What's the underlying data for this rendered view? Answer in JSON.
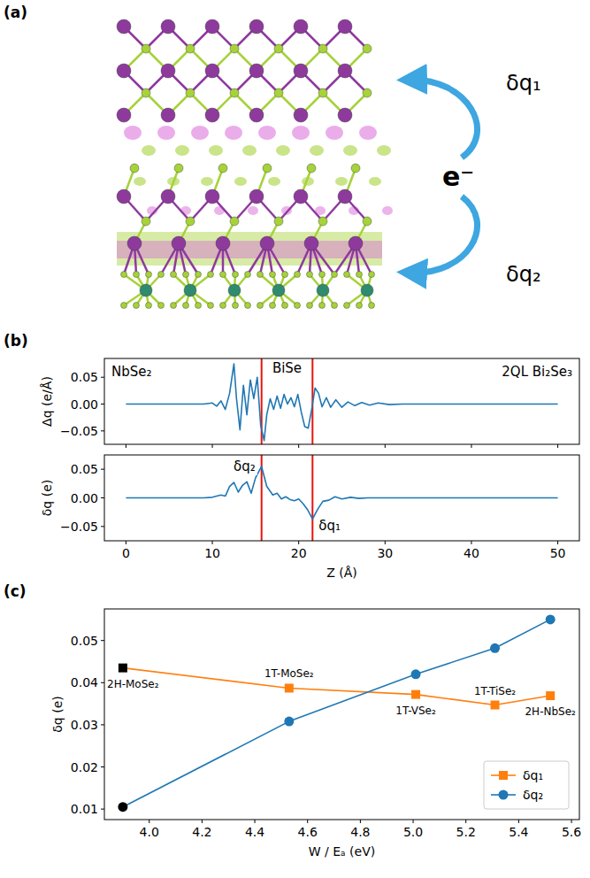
{
  "diagram": {
    "panel_label": "(a)",
    "labels": [
      "δq₁",
      "e⁻",
      "δq₂"
    ]
  },
  "chart_data": [
    {
      "type": "line",
      "panel_label": "(b)",
      "ylabel": "Δq (e/Å)",
      "annotations": [
        "NbSe₂",
        "BiSe",
        "2QL Bi₂Se₃"
      ],
      "x": [
        0,
        5,
        9,
        10,
        10.5,
        11,
        11.5,
        12,
        12.5,
        12.8,
        13.2,
        13.6,
        14,
        14.4,
        14.8,
        15.2,
        15.6,
        16,
        16.3,
        16.7,
        17.1,
        17.5,
        17.9,
        18.3,
        18.7,
        19.1,
        19.5,
        19.9,
        20.3,
        20.7,
        21.1,
        21.5,
        21.9,
        22.3,
        22.7,
        23.2,
        23.7,
        24.3,
        25,
        25.7,
        26.5,
        27.3,
        28.2,
        29.2,
        30.5,
        32,
        35,
        40,
        50
      ],
      "values": [
        0,
        0,
        0,
        0.002,
        -0.004,
        0.006,
        -0.01,
        0.02,
        0.075,
        0.01,
        -0.048,
        0.035,
        -0.02,
        0.045,
        0.01,
        0.05,
        -0.04,
        -0.068,
        -0.02,
        0.01,
        -0.01,
        0.015,
        -0.008,
        0.018,
        0.0,
        0.012,
        -0.005,
        0.018,
        -0.015,
        -0.042,
        -0.045,
        -0.01,
        0.03,
        0.02,
        -0.005,
        0.012,
        -0.006,
        0.008,
        -0.006,
        0.004,
        -0.003,
        0.003,
        -0.002,
        0.002,
        -0.001,
        0,
        0,
        0,
        0
      ],
      "color": "#1f77b4",
      "vlines": {
        "x": [
          15.7,
          21.6
        ],
        "color": "#e8140c"
      },
      "xlim": [
        -2.5,
        52.5
      ],
      "xticks": [
        0,
        10,
        20,
        30,
        40,
        50
      ],
      "ylim": [
        -0.075,
        0.085
      ],
      "yticks": [
        {
          "value": -0.05,
          "label": "−0.05"
        },
        {
          "value": 0,
          "label": "0.00"
        },
        {
          "value": 0.05,
          "label": "0.05"
        }
      ],
      "tick_labels": "y"
    },
    {
      "type": "line",
      "ylabel": "δq (e)",
      "xlabel": "Z (Å)",
      "annotations": [
        "δq₂",
        "δq₁"
      ],
      "x": [
        0,
        5,
        9,
        10,
        10.5,
        11,
        11.5,
        12,
        12.5,
        13,
        13.5,
        14,
        14.5,
        15,
        15.7,
        16.3,
        17,
        17.5,
        18,
        18.5,
        19,
        19.5,
        20,
        20.5,
        21,
        21.6,
        22.2,
        22.8,
        23.5,
        24.2,
        25,
        26,
        27,
        28,
        30,
        35,
        40,
        50
      ],
      "values": [
        0,
        0,
        0,
        0.001,
        0.003,
        0.005,
        0.003,
        0.02,
        0.027,
        0.01,
        0.022,
        0.028,
        0.008,
        0.035,
        0.055,
        0.02,
        0.005,
        0.008,
        -0.002,
        0.002,
        -0.003,
        -0.005,
        -0.002,
        -0.01,
        -0.02,
        -0.037,
        -0.02,
        -0.006,
        -0.004,
        0.002,
        -0.002,
        0.001,
        -0.001,
        0,
        0,
        0,
        0,
        0
      ],
      "color": "#1f77b4",
      "vlines": {
        "x": [
          15.7,
          21.6
        ],
        "color": "#e8140c"
      },
      "xlim": [
        -2.5,
        52.5
      ],
      "xticks": [
        0,
        10,
        20,
        30,
        40,
        50
      ],
      "ylim": [
        -0.075,
        0.075
      ],
      "yticks": [
        {
          "value": -0.05,
          "label": "−0.05"
        },
        {
          "value": 0,
          "label": "0.00"
        },
        {
          "value": 0.05,
          "label": "0.05"
        }
      ]
    },
    {
      "type": "line",
      "panel_label": "(c)",
      "xlabel": "W / Eₐ (eV)",
      "ylabel": "δq (e)",
      "x": [
        3.9,
        4.53,
        5.01,
        5.31,
        5.52
      ],
      "point_labels": [
        "2H-MoSe₂",
        "1T-MoSe₂",
        "1T-VSe₂",
        "1T-TiSe₂",
        "2H-NbSe₂"
      ],
      "series": [
        {
          "name": "δq₁",
          "color": "#ff7f0e",
          "marker": "square",
          "colors": [
            "#000000",
            "#ff7f0e",
            "#ff7f0e",
            "#ff7f0e",
            "#ff7f0e"
          ],
          "values": [
            0.0435,
            0.0387,
            0.0372,
            0.0347,
            0.0369
          ]
        },
        {
          "name": "δq₂",
          "color": "#1f77b4",
          "marker": "circle",
          "colors": [
            "#000000",
            "#1f77b4",
            "#1f77b4",
            "#1f77b4",
            "#1f77b4"
          ],
          "values": [
            0.0105,
            0.0308,
            0.042,
            0.0482,
            0.055
          ]
        }
      ],
      "xlim": [
        3.83,
        5.63
      ],
      "xticks": [
        {
          "value": 4.0,
          "label": "4.0"
        },
        {
          "value": 4.2,
          "label": "4.2"
        },
        {
          "value": 4.4,
          "label": "4.4"
        },
        {
          "value": 4.6,
          "label": "4.6"
        },
        {
          "value": 4.8,
          "label": "4.8"
        },
        {
          "value": 5.0,
          "label": "5.0"
        },
        {
          "value": 5.2,
          "label": "5.2"
        },
        {
          "value": 5.4,
          "label": "5.4"
        },
        {
          "value": 5.6,
          "label": "5.6"
        }
      ],
      "ylim": [
        0.0075,
        0.0575
      ],
      "yticks": [
        0.01,
        0.02,
        0.03,
        0.04,
        0.05
      ],
      "legend": "lower right"
    }
  ]
}
